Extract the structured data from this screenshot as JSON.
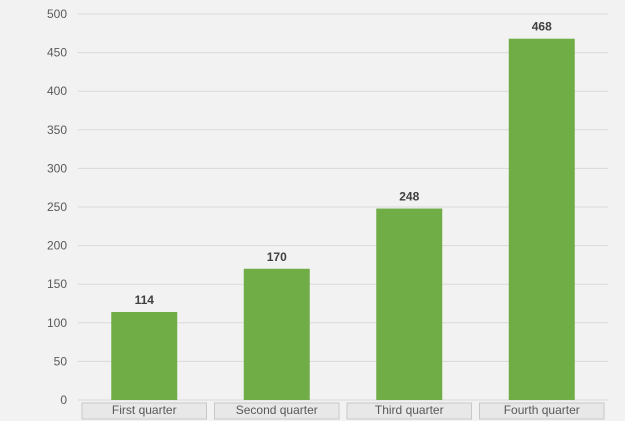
{
  "chart_data": {
    "type": "bar",
    "categories": [
      "First quarter",
      "Second quarter",
      "Third quarter",
      "Fourth quarter"
    ],
    "values": [
      114,
      170,
      248,
      468
    ],
    "ylim": [
      0,
      500
    ],
    "yticks": [
      0,
      50,
      100,
      150,
      200,
      250,
      300,
      350,
      400,
      450,
      500
    ],
    "grid": true,
    "legend": "none",
    "colors": {
      "bar": "#70ad47",
      "grid": "#d9d9d9",
      "background": "#f2f2f2",
      "category_box": "#e8e8e8",
      "category_box_border": "#c8c8c8"
    }
  }
}
